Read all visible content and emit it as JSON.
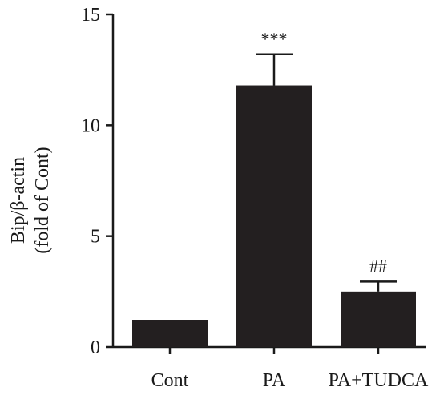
{
  "chart_data": {
    "type": "bar",
    "categories": [
      "Cont",
      "PA",
      "PA+TUDCA"
    ],
    "values": [
      1.2,
      11.8,
      2.5
    ],
    "errors": [
      0,
      1.4,
      0.45
    ],
    "significance": [
      "",
      "***",
      "##"
    ],
    "ylabel_lines": [
      "Bip/β-actin",
      "(fold of Cont)"
    ],
    "ylim": [
      0,
      15
    ],
    "yticks": [
      0,
      5,
      10,
      15
    ],
    "grid": false,
    "bar_color": "#231f20"
  }
}
